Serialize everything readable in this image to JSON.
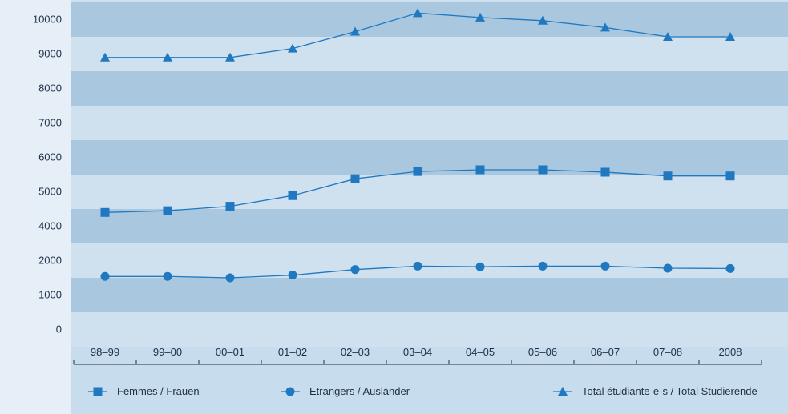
{
  "chart_data": {
    "type": "line",
    "categories": [
      "98–99",
      "99–00",
      "00–01",
      "01–02",
      "02–03",
      "03–04",
      "04–05",
      "05–06",
      "06–07",
      "07–08",
      "2008"
    ],
    "ytick_labels": [
      "0",
      "1000",
      "2000",
      "4000",
      "5000",
      "6000",
      "7000",
      "8000",
      "9000",
      "10000"
    ],
    "series": [
      {
        "name": "Femmes / Frauen",
        "marker": "square",
        "values": [
          4400,
          4450,
          4580,
          4890,
          5380,
          5590,
          5640,
          5640,
          5570,
          5460,
          5460
        ]
      },
      {
        "name": "Etrangers / Ausländer",
        "marker": "circle",
        "values": [
          1540,
          1540,
          1500,
          1580,
          1740,
          1840,
          1820,
          1840,
          1840,
          1780,
          1770
        ]
      },
      {
        "name": "Total étudiante-e-s / Total Studierende",
        "marker": "triangle",
        "values": [
          8900,
          8900,
          8900,
          9160,
          9650,
          10190,
          10060,
          9970,
          9770,
          9500,
          9500
        ]
      }
    ],
    "legend_position": "bottom",
    "grid": "alternating horizontal bands",
    "colors": {
      "line": "#1f78c0",
      "text": "#1f2f4a",
      "band_dark": "#a9c8df",
      "band_light": "#cfe0ee",
      "legend_bg": "#c7dced",
      "page_bg": "#e6eff7"
    }
  }
}
